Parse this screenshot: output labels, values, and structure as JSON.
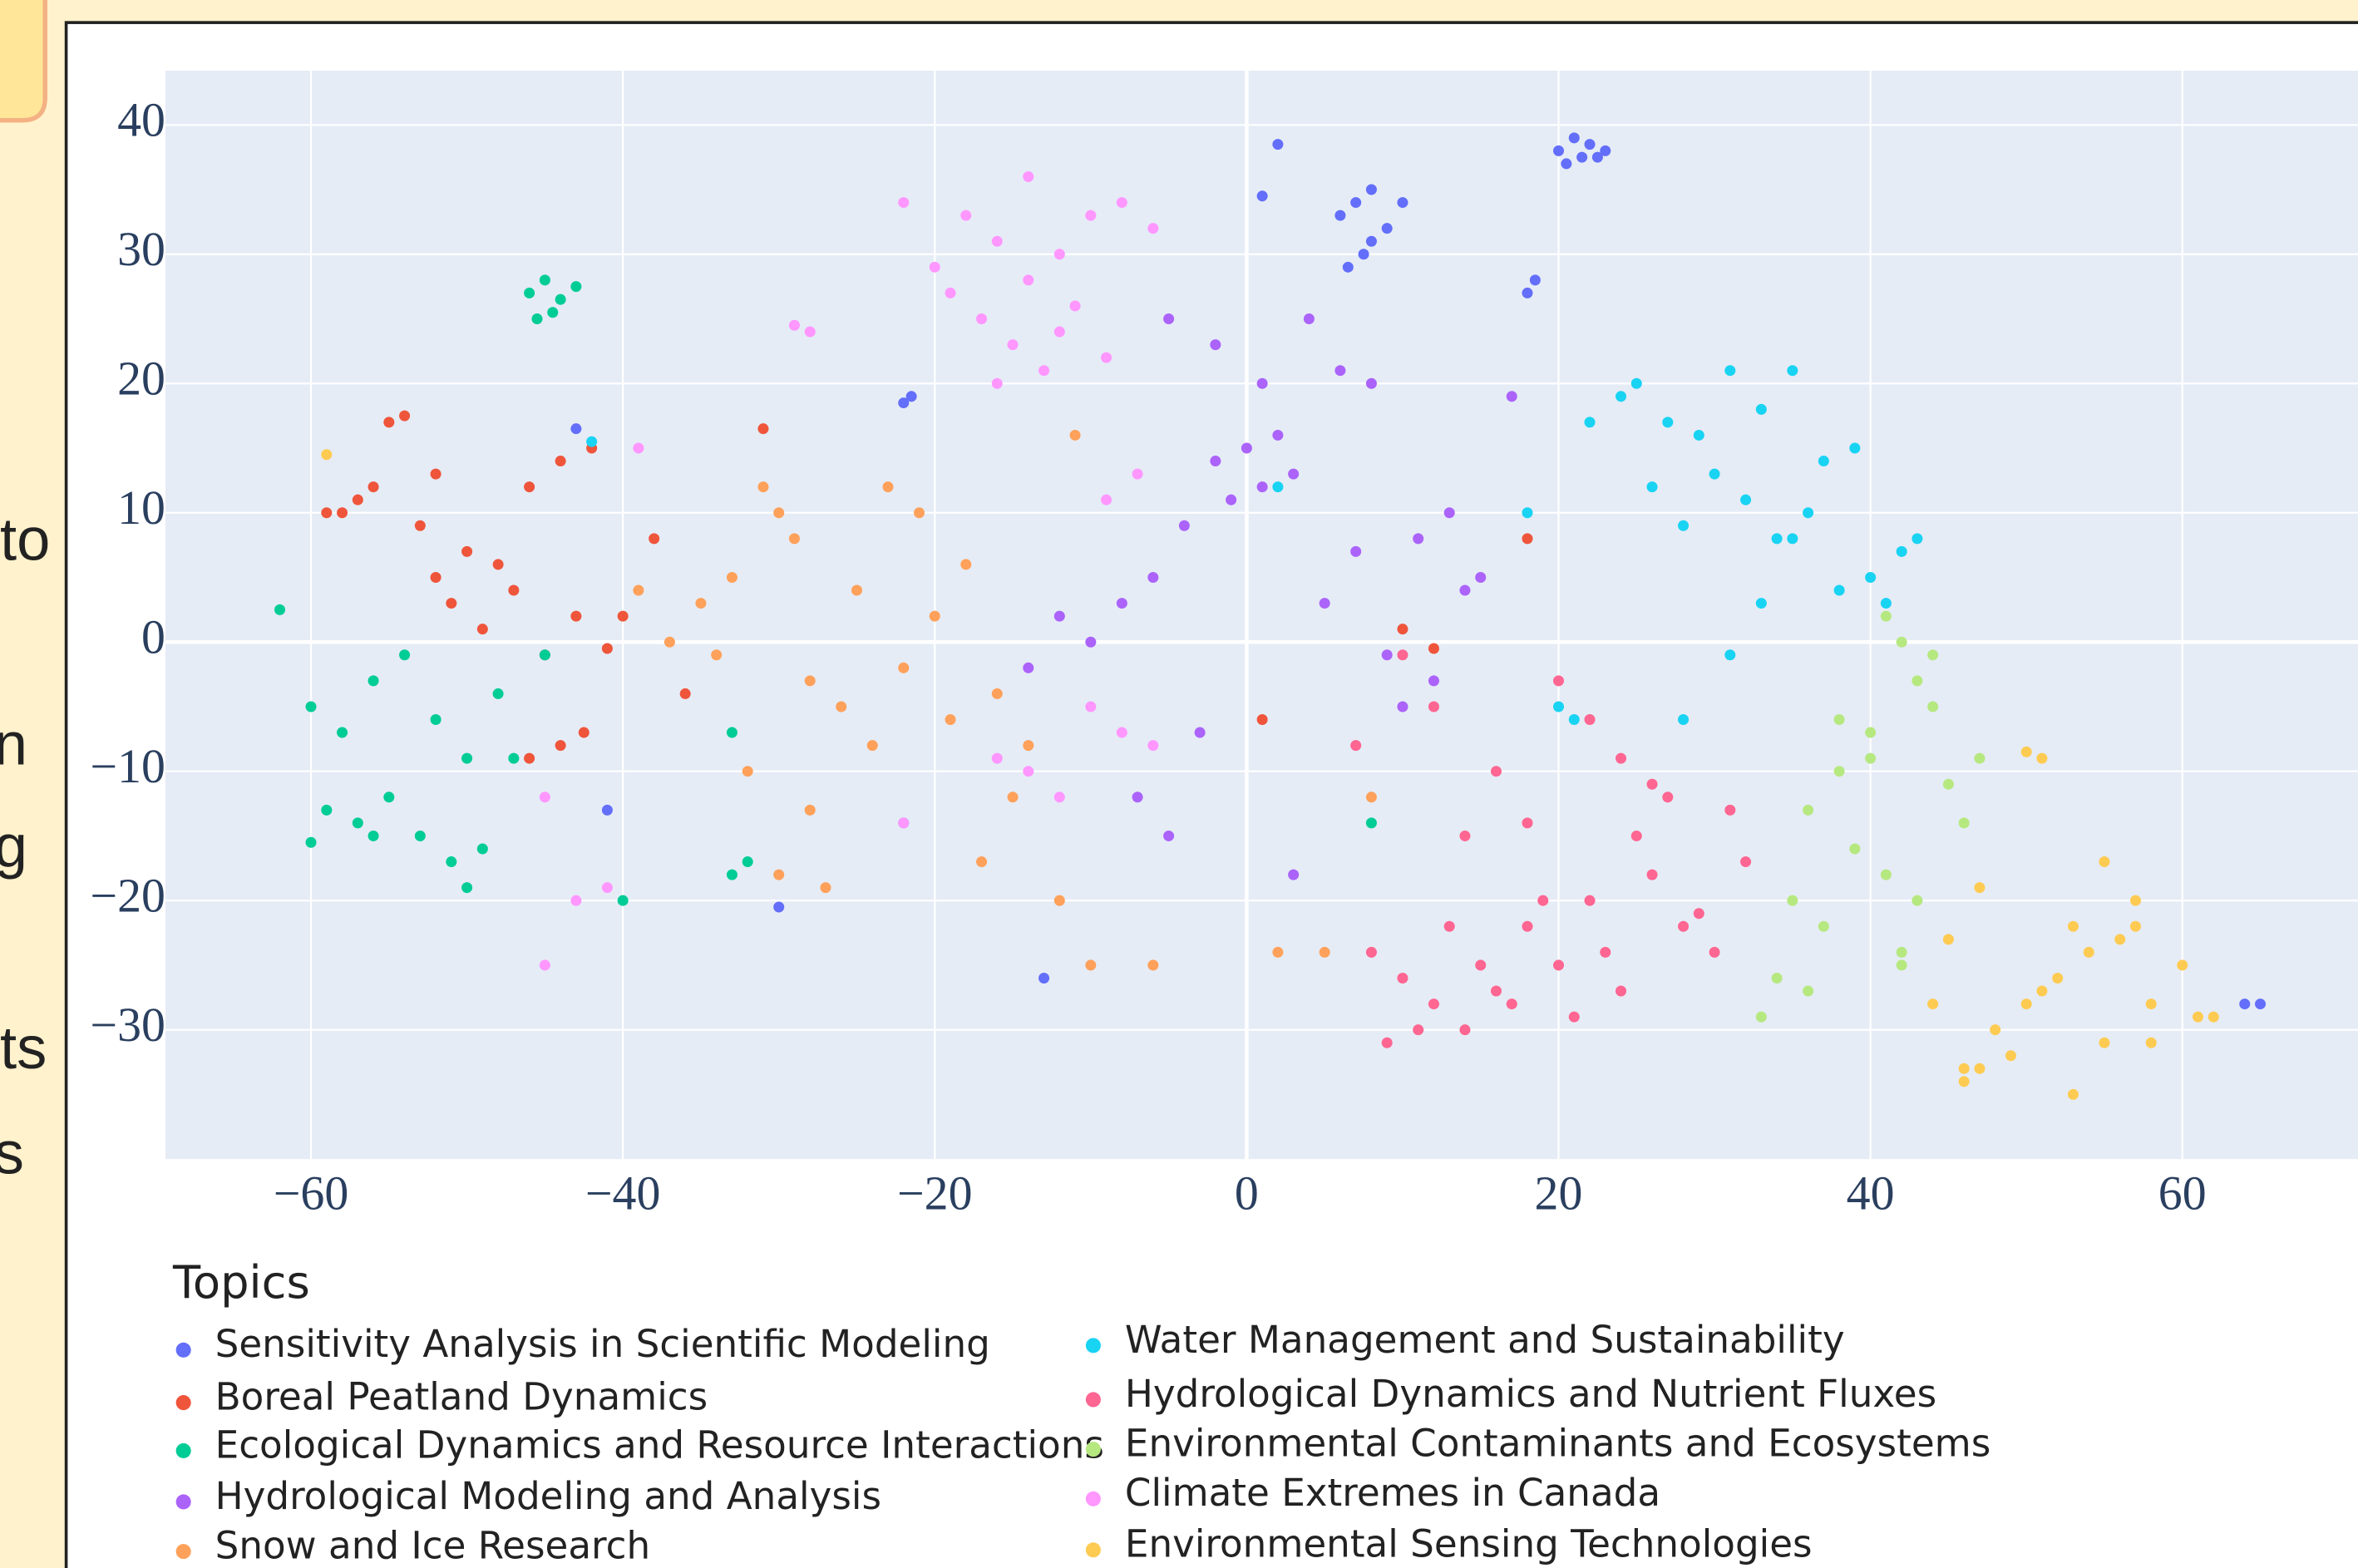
{
  "side_text": [
    "to",
    "n",
    "g",
    "ts",
    "s"
  ],
  "chart_data": {
    "type": "scatter",
    "legend_title": "Topics",
    "xlim": [
      -69.3,
      71.3
    ],
    "ylim": [
      -40,
      44.2
    ],
    "xticks": [
      {
        "value": -60,
        "label": "−60"
      },
      {
        "value": -40,
        "label": "−40"
      },
      {
        "value": -20,
        "label": "−20"
      },
      0,
      20,
      40,
      60
    ],
    "yticks": [
      {
        "value": -30,
        "label": "−30"
      },
      {
        "value": -20,
        "label": "−20"
      },
      {
        "value": -10,
        "label": "−10"
      },
      0,
      10,
      20,
      30,
      40
    ],
    "grid": true,
    "series": [
      {
        "name": "Sensitivity Analysis in Scientific Modeling",
        "color": "#636efa",
        "x": [
          20,
          21,
          22,
          23,
          20.5,
          21.5,
          22.5,
          6,
          7,
          8,
          9,
          7.5,
          6.5,
          10,
          8,
          2,
          1,
          18,
          18.5,
          -22,
          -21.5,
          -43,
          64,
          65,
          -41,
          -30,
          -13,
          -22
        ],
        "y": [
          38,
          39,
          38.5,
          38,
          37,
          37.5,
          37.5,
          33,
          34,
          35,
          32,
          30,
          29,
          34,
          31,
          38.5,
          34.5,
          27,
          28,
          18.5,
          19,
          16.5,
          -28,
          -28,
          -13,
          -20.5,
          -26,
          -14
        ]
      },
      {
        "name": "Boreal Peatland Dynamics",
        "color": "#ef553b",
        "x": [
          -55,
          -54,
          -52,
          -57,
          -59,
          -53,
          -50,
          -48,
          -46,
          -44,
          -42,
          -47,
          -49,
          -51,
          -56,
          -58,
          -45,
          -43,
          -41,
          -44,
          -42.5,
          -40,
          -36,
          -38,
          10,
          12,
          18,
          1,
          -31,
          -46,
          -52
        ],
        "y": [
          17,
          17.5,
          13,
          11,
          10,
          9,
          7,
          6,
          12,
          14,
          15,
          4,
          1,
          3,
          12,
          10,
          -1,
          2,
          -0.5,
          -8,
          -7,
          2,
          -4,
          8,
          1,
          -0.5,
          8,
          -6,
          16.5,
          -9,
          5
        ]
      },
      {
        "name": "Ecological Dynamics and Resource Interactions",
        "color": "#00cc96",
        "x": [
          -46,
          -45,
          -44,
          -43,
          -45.5,
          -44.5,
          -62,
          -60,
          -58,
          -56,
          -54,
          -52,
          -50,
          -48,
          -59,
          -57,
          -55,
          -53,
          -51,
          -49,
          -60,
          -56,
          -50,
          -47,
          -32,
          -33,
          -40,
          8,
          -33,
          -45
        ],
        "y": [
          27,
          28,
          26.5,
          27.5,
          25,
          25.5,
          2.5,
          -5,
          -7,
          -3,
          -1,
          -6,
          -9,
          -4,
          -13,
          -14,
          -12,
          -15,
          -17,
          -16,
          -15.5,
          -15,
          -19,
          -9,
          -17,
          -7,
          -20,
          -14,
          -18,
          -1
        ]
      },
      {
        "name": "Hydrological Modeling and Analysis",
        "color": "#ab63fa",
        "x": [
          -2,
          0,
          1,
          2,
          3,
          -1,
          -4,
          -6,
          -8,
          -10,
          -12,
          -3,
          5,
          7,
          9,
          11,
          13,
          15,
          17,
          4,
          6,
          -2,
          -5,
          1,
          10,
          14,
          -7,
          -14,
          -5,
          3,
          8,
          12
        ],
        "y": [
          14,
          15,
          12,
          16,
          13,
          11,
          9,
          5,
          3,
          0,
          2,
          -7,
          3,
          7,
          -1,
          8,
          10,
          5,
          19,
          25,
          21,
          23,
          25,
          20,
          -5,
          4,
          -12,
          -2,
          -15,
          -18,
          20,
          -3
        ]
      },
      {
        "name": "Snow and Ice Research",
        "color": "#ffa15a",
        "x": [
          -31,
          -30,
          -29,
          -33,
          -35,
          -37,
          -28,
          -26,
          -24,
          -22,
          -20,
          -18,
          -16,
          -14,
          -25,
          -23,
          -21,
          -19,
          -32,
          -34,
          -30,
          -27,
          -17,
          -15,
          -12,
          -10,
          -6,
          2,
          5,
          8,
          -39,
          -28,
          -11
        ],
        "y": [
          12,
          10,
          8,
          5,
          3,
          0,
          -3,
          -5,
          -8,
          -2,
          2,
          6,
          -4,
          -8,
          4,
          12,
          10,
          -6,
          -10,
          -1,
          -18,
          -19,
          -17,
          -12,
          -20,
          -25,
          -25,
          -24,
          -24,
          -12,
          4,
          -13,
          16
        ]
      },
      {
        "name": "Water Management and Sustainability",
        "color": "#19d3f3",
        "x": [
          22,
          24,
          25,
          27,
          29,
          31,
          33,
          35,
          37,
          39,
          26,
          28,
          30,
          32,
          34,
          36,
          38,
          40,
          42,
          18,
          20,
          21,
          31,
          33,
          35,
          28,
          -42,
          2,
          41,
          43
        ],
        "y": [
          17,
          19,
          20,
          17,
          16,
          21,
          18,
          21,
          14,
          15,
          12,
          9,
          13,
          11,
          8,
          10,
          4,
          5,
          7,
          10,
          -5,
          -6,
          -1,
          3,
          8,
          -6,
          15.5,
          12,
          3,
          8
        ]
      },
      {
        "name": "Hydrological Dynamics and Nutrient Fluxes",
        "color": "#ff6692",
        "x": [
          8,
          10,
          12,
          14,
          16,
          18,
          20,
          22,
          24,
          26,
          28,
          30,
          32,
          9,
          11,
          13,
          15,
          17,
          19,
          21,
          23,
          25,
          27,
          29,
          31,
          7,
          12,
          16,
          20,
          24,
          10,
          14,
          18,
          22,
          26
        ],
        "y": [
          -24,
          -26,
          -28,
          -30,
          -27,
          -22,
          -25,
          -20,
          -27,
          -18,
          -22,
          -24,
          -17,
          -31,
          -30,
          -22,
          -25,
          -28,
          -20,
          -29,
          -24,
          -15,
          -12,
          -21,
          -13,
          -8,
          -5,
          -10,
          -3,
          -9,
          -1,
          -15,
          -14,
          -6,
          -11
        ]
      },
      {
        "name": "Environmental Contaminants and Ecosystems",
        "color": "#b6e880",
        "x": [
          41,
          42,
          43,
          44,
          40,
          38,
          36,
          45,
          46,
          47,
          39,
          41,
          43,
          35,
          37,
          34,
          36,
          42,
          44,
          40,
          38,
          33,
          42
        ],
        "y": [
          2,
          0,
          -3,
          -5,
          -9,
          -10,
          -13,
          -11,
          -14,
          -9,
          -16,
          -18,
          -20,
          -20,
          -22,
          -26,
          -27,
          -25,
          -1,
          -7,
          -6,
          -29,
          -24
        ]
      },
      {
        "name": "Climate Extremes in Canada",
        "color": "#ff97ff",
        "x": [
          -22,
          -18,
          -16,
          -14,
          -12,
          -10,
          -8,
          -6,
          -17,
          -15,
          -13,
          -11,
          -9,
          -19,
          -16,
          -14,
          -20,
          -12,
          -28,
          -29,
          -10,
          -8,
          -6,
          -16,
          -14,
          -12,
          -45,
          -45,
          -43,
          -41,
          -39,
          -22,
          -7,
          -9
        ],
        "y": [
          34,
          33,
          31,
          28,
          30,
          33,
          34,
          32,
          25,
          23,
          21,
          26,
          22,
          27,
          20,
          36,
          29,
          24,
          24,
          24.5,
          -5,
          -7,
          -8,
          -9,
          -10,
          -12,
          -12,
          -25,
          -20,
          -19,
          15,
          -14,
          13,
          11
        ]
      },
      {
        "name": "Environmental Sensing Technologies",
        "color": "#fecb52",
        "x": [
          46,
          47,
          48,
          50,
          52,
          54,
          56,
          58,
          60,
          62,
          49,
          51,
          53,
          55,
          57,
          45,
          47,
          53,
          55,
          57,
          58,
          61,
          51,
          50,
          -59,
          44,
          46
        ],
        "y": [
          -34,
          -33,
          -30,
          -28,
          -26,
          -24,
          -23,
          -28,
          -25,
          -29,
          -32,
          -27,
          -22,
          -31,
          -22,
          -23,
          -19,
          -35,
          -17,
          -20,
          -31,
          -29,
          -9,
          -8.5,
          14.5,
          -28,
          -33
        ]
      }
    ]
  }
}
